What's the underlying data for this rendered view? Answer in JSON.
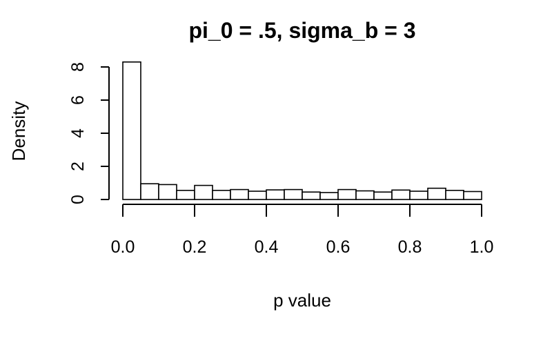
{
  "chart_data": {
    "type": "bar",
    "title": "pi_0 = .5, sigma_b = 3",
    "xlabel": "p value",
    "ylabel": "Density",
    "xlim": [
      0,
      1
    ],
    "ylim": [
      0,
      8
    ],
    "x_ticks": [
      "0.0",
      "0.2",
      "0.4",
      "0.6",
      "0.8",
      "1.0"
    ],
    "y_ticks": [
      "0",
      "2",
      "4",
      "6",
      "8"
    ],
    "bin_width": 0.05,
    "bins_start": [
      0.0,
      0.05,
      0.1,
      0.15,
      0.2,
      0.25,
      0.3,
      0.35,
      0.4,
      0.45,
      0.5,
      0.55,
      0.6,
      0.65,
      0.7,
      0.75,
      0.8,
      0.85,
      0.9,
      0.95
    ],
    "values": [
      8.3,
      0.95,
      0.9,
      0.55,
      0.85,
      0.55,
      0.6,
      0.5,
      0.58,
      0.6,
      0.45,
      0.42,
      0.6,
      0.52,
      0.45,
      0.57,
      0.5,
      0.68,
      0.55,
      0.48
    ],
    "grid": false,
    "legend": "none"
  }
}
